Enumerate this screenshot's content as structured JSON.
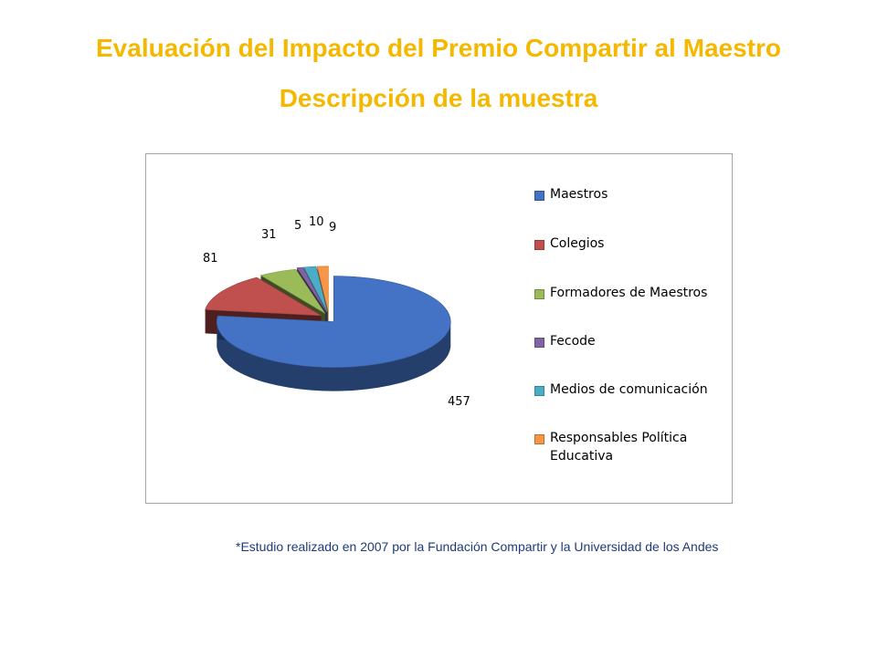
{
  "page": {
    "title_line1": "Evaluación del Impacto del Premio Compartir al Maestro",
    "title_line2": "Descripción de la muestra",
    "footnote": "*Estudio realizado en 2007 por la Fundación Compartir y la Universidad de los Andes"
  },
  "chart_data": {
    "type": "pie",
    "title": "",
    "legend_position": "right",
    "categories": [
      "Maestros",
      "Colegios",
      "Formadores de Maestros",
      "Fecode",
      "Medios de comunicación",
      "Responsables Política Educativa"
    ],
    "values": [
      457,
      81,
      31,
      5,
      10,
      9
    ],
    "data_labels": [
      "457",
      "81",
      "31",
      "5",
      "10",
      "9"
    ],
    "colors": [
      "#4472c4",
      "#c0504d",
      "#9bbb59",
      "#8064a2",
      "#4bacc6",
      "#f79646"
    ],
    "exploded": true,
    "style": "3d"
  }
}
